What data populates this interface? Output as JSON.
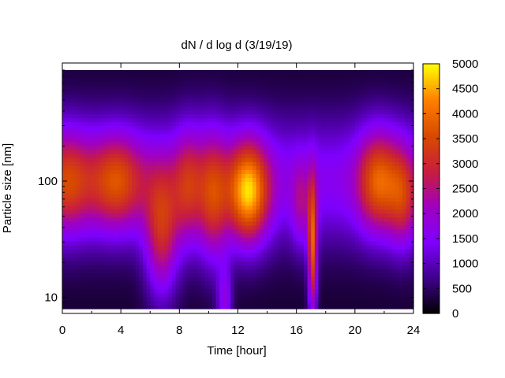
{
  "chart_data": {
    "type": "heatmap",
    "title": "dN / d log d (3/19/19)",
    "xlabel": "Time [hour]",
    "ylabel": "Particle size [nm]",
    "x_range": [
      0,
      24
    ],
    "x_ticks": [
      0,
      4,
      8,
      12,
      16,
      20,
      24
    ],
    "y_scale": "log",
    "y_range": [
      8,
      900
    ],
    "y_ticks": [
      10,
      100
    ],
    "colorbar": {
      "range": [
        0,
        5000
      ],
      "ticks": [
        0,
        500,
        1000,
        1500,
        2000,
        2500,
        3000,
        3500,
        4000,
        4500,
        5000
      ],
      "colormap": [
        "#000000",
        "#40008c",
        "#7f00ff",
        "#a000c0",
        "#c81e3c",
        "#d84a00",
        "#ff8000",
        "#ffff00"
      ]
    },
    "features": [
      {
        "t_center": 0.3,
        "t_width": 1.3,
        "d_center": 100,
        "d_width_decades": 0.35,
        "value": 3300
      },
      {
        "t_center": 3.7,
        "t_width": 1.5,
        "d_center": 100,
        "d_width_decades": 0.33,
        "value": 3500
      },
      {
        "t_center": 6.8,
        "t_width": 0.9,
        "d_center": 35,
        "d_width_decades": 0.45,
        "value": 3600
      },
      {
        "t_center": 8.6,
        "t_width": 0.8,
        "d_center": 90,
        "d_width_decades": 0.4,
        "value": 3000
      },
      {
        "t_center": 10.3,
        "t_width": 0.8,
        "d_center": 70,
        "d_width_decades": 0.45,
        "value": 3300
      },
      {
        "t_center": 11.1,
        "t_width": 0.4,
        "d_center": 9,
        "d_width_decades": 0.25,
        "value": 2800
      },
      {
        "t_center": 12.7,
        "t_width": 1.1,
        "d_center": 80,
        "d_width_decades": 0.35,
        "value": 4700
      },
      {
        "t_center": 16.3,
        "t_width": 0.5,
        "d_center": 60,
        "d_width_decades": 0.3,
        "value": 2400
      },
      {
        "t_center": 17.1,
        "t_width": 0.25,
        "d_center": 25,
        "d_width_decades": 0.45,
        "value": 4500
      },
      {
        "t_center": 21.6,
        "t_width": 1.1,
        "d_center": 100,
        "d_width_decades": 0.35,
        "value": 3700
      },
      {
        "t_center": 23.3,
        "t_width": 0.8,
        "d_center": 70,
        "d_width_decades": 0.35,
        "value": 3000
      }
    ]
  }
}
